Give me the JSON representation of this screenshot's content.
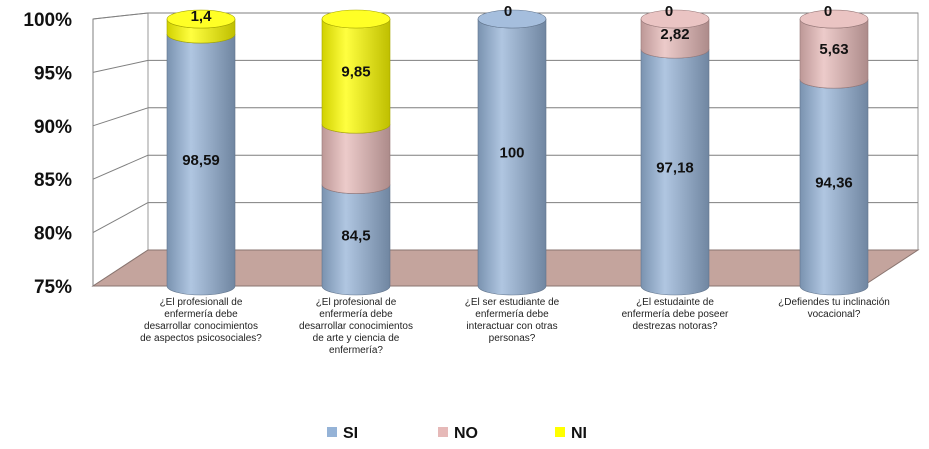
{
  "chart_data": {
    "type": "bar",
    "stacked": true,
    "normalized": true,
    "three_d": true,
    "ylim": [
      75,
      100
    ],
    "yticks": [
      "75%",
      "80%",
      "85%",
      "90%",
      "95%",
      "100%"
    ],
    "categories": [
      [
        "¿El profesionall  de",
        "enfermería debe",
        "desarrollar conocimientos",
        "de aspectos psicosociales?"
      ],
      [
        "¿El profesional  de",
        "enfermería debe",
        "desarrollar conocimientos",
        "de arte y ciencia  de",
        "enfermería?"
      ],
      [
        "¿El ser estudiante  de",
        "enfermería debe",
        "interactuar con otras",
        "personas?"
      ],
      [
        "¿El estudainte de",
        "enfermería debe  poseer",
        "destrezas notoras?"
      ],
      [
        "¿Defiendes  tu inclinación",
        "vocacional?"
      ]
    ],
    "series": [
      {
        "name": "SI",
        "color": "#95b3d7",
        "values": [
          98.59,
          84.5,
          100,
          97.18,
          94.36
        ],
        "labels": [
          "98,59",
          "84,5",
          "100",
          "97,18",
          "94,36"
        ]
      },
      {
        "name": "NO",
        "color": "#e6b9b8",
        "values": [
          0,
          5.65,
          0,
          2.82,
          5.63
        ],
        "labels": [
          "",
          "",
          "",
          "2,82",
          "5,63"
        ]
      },
      {
        "name": "NI",
        "color": "#ffff00",
        "values": [
          1.4,
          9.85,
          0,
          0,
          0
        ],
        "labels": [
          "1,4",
          "9,85",
          "0",
          "0",
          "0"
        ]
      }
    ],
    "legend_position": "bottom",
    "grid": true
  }
}
